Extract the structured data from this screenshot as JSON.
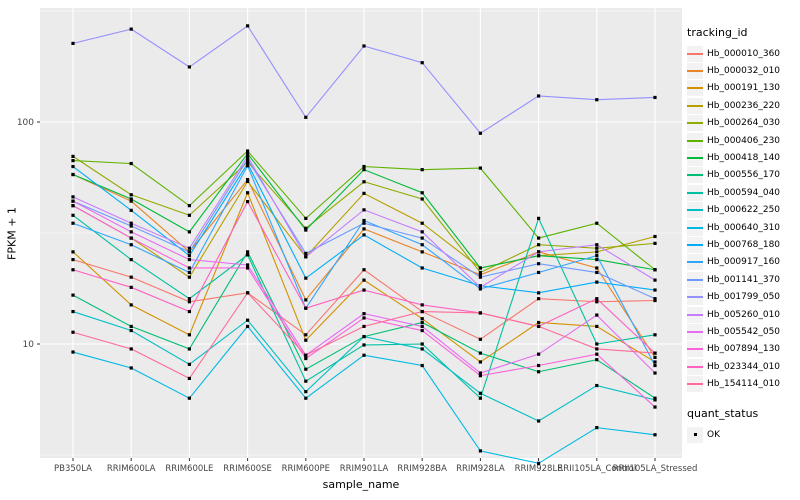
{
  "figure": {
    "x_axis_title": "sample_name",
    "y_axis_title": "FPKM + 1",
    "legend_tracking_title": "tracking_id",
    "legend_quant_title": "quant_status",
    "quant_ok_label": "OK"
  },
  "chart_data": {
    "type": "line",
    "title": "",
    "xlabel": "sample_name",
    "ylabel": "FPKM + 1",
    "y_scale": "log10",
    "y_ticks": [
      10,
      100
    ],
    "y_minor_ticks": [
      3.162,
      31.62,
      316.2
    ],
    "ylim": [
      3.0,
      330
    ],
    "grid": "white major and minor on gray panel",
    "legend_position": "right",
    "panel_background": "#EBEBEB",
    "point_marker": {
      "shape": "square",
      "color": "#000000",
      "size": 3.2,
      "label": "OK"
    },
    "categories": [
      "PB350LA",
      "RRIM600LA",
      "RRIM600LE",
      "RRIM600SE",
      "RRIM600PE",
      "RRIM901LA",
      "RRIM928BA",
      "RRIM928LA",
      "RRIM928LE",
      "RRII105LA_Control",
      "RRII105LA_Stressed"
    ],
    "series": [
      {
        "name": "Hb_000010_360",
        "color": "#F8766D",
        "values": [
          24,
          20,
          15.5,
          17,
          11.0,
          21.6,
          14,
          10.5,
          16,
          15.5,
          15.7
        ]
      },
      {
        "name": "Hb_000032_010",
        "color": "#E88526",
        "values": [
          58,
          44,
          26,
          55,
          15.8,
          33,
          26,
          20.5,
          26,
          22,
          8.7
        ]
      },
      {
        "name": "Hb_000191_130",
        "color": "#D39200",
        "values": [
          26,
          15,
          11,
          48,
          10.4,
          19.4,
          13,
          8.3,
          12.5,
          12,
          8.3
        ]
      },
      {
        "name": "Hb_000236_220",
        "color": "#B79F00",
        "values": [
          42,
          30,
          20,
          54,
          24.7,
          47.7,
          35,
          22,
          25,
          26,
          30.5
        ]
      },
      {
        "name": "Hb_000264_030",
        "color": "#93AA00",
        "values": [
          70,
          47,
          38,
          66,
          33.2,
          53.8,
          45,
          21,
          28,
          27,
          28.4
        ]
      },
      {
        "name": "Hb_000406_230",
        "color": "#5EB300",
        "values": [
          67,
          65,
          42,
          74,
          36.8,
          63,
          61,
          62,
          30,
          35,
          21.6
        ]
      },
      {
        "name": "Hb_000418_140",
        "color": "#00BA38",
        "values": [
          58,
          45,
          32,
          72,
          32.6,
          61,
          48,
          22,
          25,
          24,
          21.6
        ]
      },
      {
        "name": "Hb_000556_170",
        "color": "#00BF74",
        "values": [
          16.6,
          12,
          9.5,
          26,
          7.7,
          10.8,
          12.5,
          9.1,
          7.5,
          8.5,
          5.7
        ]
      },
      {
        "name": "Hb_000594_040",
        "color": "#00C19F",
        "values": [
          38,
          24,
          16,
          25.2,
          6.8,
          9.9,
          10,
          5.7,
          36.8,
          10,
          11.0
        ]
      },
      {
        "name": "Hb_000622_250",
        "color": "#00BFC4",
        "values": [
          14,
          11.5,
          8.1,
          12.8,
          6.1,
          10.8,
          9.5,
          6.0,
          4.5,
          6.5,
          5.6
        ]
      },
      {
        "name": "Hb_000640_310",
        "color": "#00B9E3",
        "values": [
          9.2,
          7.8,
          5.7,
          12.0,
          5.7,
          8.9,
          8.0,
          3.3,
          2.9,
          4.2,
          3.9
        ]
      },
      {
        "name": "Hb_000768_180",
        "color": "#00ADFA",
        "values": [
          63,
          40,
          25,
          65,
          19.8,
          31,
          22,
          18.3,
          17,
          19,
          17.5
        ]
      },
      {
        "name": "Hb_000917_160",
        "color": "#30A5FF",
        "values": [
          35,
          28,
          21,
          63.5,
          14.5,
          36,
          28,
          17.7,
          21,
          25,
          8.0
        ]
      },
      {
        "name": "Hb_001141_370",
        "color": "#6E9AFF",
        "values": [
          44,
          34,
          26,
          68,
          25.6,
          35,
          30,
          20,
          23,
          21,
          16.0
        ]
      },
      {
        "name": "Hb_001799_050",
        "color": "#9590FF",
        "values": [
          226,
          262,
          177,
          271,
          105,
          220,
          185,
          89,
          131,
          126,
          129
        ]
      },
      {
        "name": "Hb_005260_010",
        "color": "#C77CFF",
        "values": [
          46,
          35,
          27,
          70,
          24.7,
          40.2,
          32,
          18,
          26,
          28,
          19.4
        ]
      },
      {
        "name": "Hb_005542_050",
        "color": "#E76BF3",
        "values": [
          44,
          32,
          24,
          22.7,
          8.9,
          13.7,
          12,
          7.4,
          9,
          13.5,
          7.4
        ]
      },
      {
        "name": "Hb_007894_130",
        "color": "#FA62DB",
        "values": [
          42,
          30,
          22,
          22,
          8.6,
          13.1,
          11.5,
          7.2,
          8,
          9,
          5.2
        ]
      },
      {
        "name": "Hb_023344_010",
        "color": "#FF61C2",
        "values": [
          21.6,
          18,
          14,
          43.8,
          14.5,
          17.5,
          15,
          13.8,
          12,
          16,
          9.1
        ]
      },
      {
        "name": "Hb_154114_010",
        "color": "#FF6B96",
        "values": [
          11.3,
          9.5,
          7.0,
          17,
          8.9,
          12.0,
          14,
          13.8,
          12,
          9.5,
          9.1
        ]
      }
    ]
  }
}
